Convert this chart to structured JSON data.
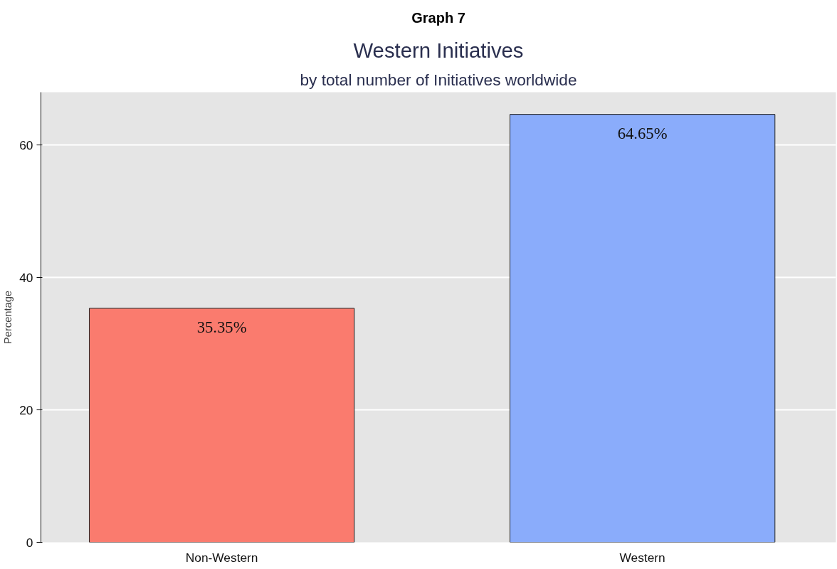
{
  "chart_data": {
    "type": "bar",
    "title": "Western Initiatives",
    "subtitle": "by total number of Initiatives worldwide",
    "annotations": [
      "Graph 7"
    ],
    "ylabel": "Percentage",
    "categories": [
      "Non-Western",
      "Western"
    ],
    "values": [
      35.35,
      64.65
    ],
    "colors": [
      "#fa7b6e",
      "#8aacfb"
    ],
    "value_labels": [
      "35.35%",
      "64.65%"
    ],
    "ylim": [
      0,
      68
    ],
    "yticks": [
      0,
      20,
      40,
      60
    ],
    "grid": "y"
  }
}
